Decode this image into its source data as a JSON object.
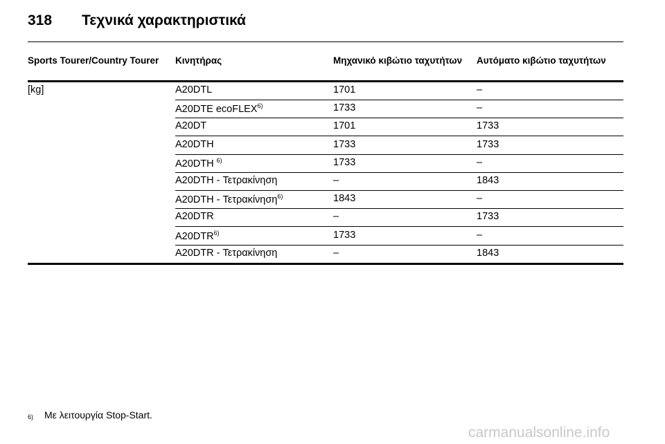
{
  "header": {
    "page_number": "318",
    "title": "Τεχνικά χαρακτηριστικά"
  },
  "table": {
    "columns": [
      "Sports Tourer/Country Tourer",
      "Κινητήρας",
      "Μηχανικό κιβώτιο ταχυτήτων",
      "Αυτόματο κιβώτιο ταχυτήτων"
    ],
    "rows": [
      {
        "unit": "[kg]",
        "engine": "A20DTL",
        "manual": "1701",
        "automatic": "–"
      },
      {
        "engine": "A20DTE ecoFLEX",
        "note": "6)",
        "manual": "1733",
        "automatic": "–"
      },
      {
        "engine": "A20DT",
        "manual": "1701",
        "automatic": "1733"
      },
      {
        "engine": "A20DTH",
        "manual": "1733",
        "automatic": "1733"
      },
      {
        "engine": "A20DTH ",
        "note": "6)",
        "manual": "1733",
        "automatic": "–"
      },
      {
        "engine": "A20DTH - Τετρακίνηση",
        "manual": "–",
        "automatic": "1843"
      },
      {
        "engine": "A20DTH - Τετρακίνηση",
        "note": "6)",
        "manual": "1843",
        "automatic": "–"
      },
      {
        "engine": "A20DTR",
        "manual": "–",
        "automatic": "1733"
      },
      {
        "engine": "A20DTR",
        "note": "6)",
        "manual": "1733",
        "automatic": "–"
      },
      {
        "engine": "A20DTR - Τετρακίνηση",
        "manual": "–",
        "automatic": "1843"
      }
    ]
  },
  "footnote": {
    "marker": "6)",
    "text": "Με λειτουργία Stop-Start."
  },
  "watermark": "carmanualsonline.info"
}
